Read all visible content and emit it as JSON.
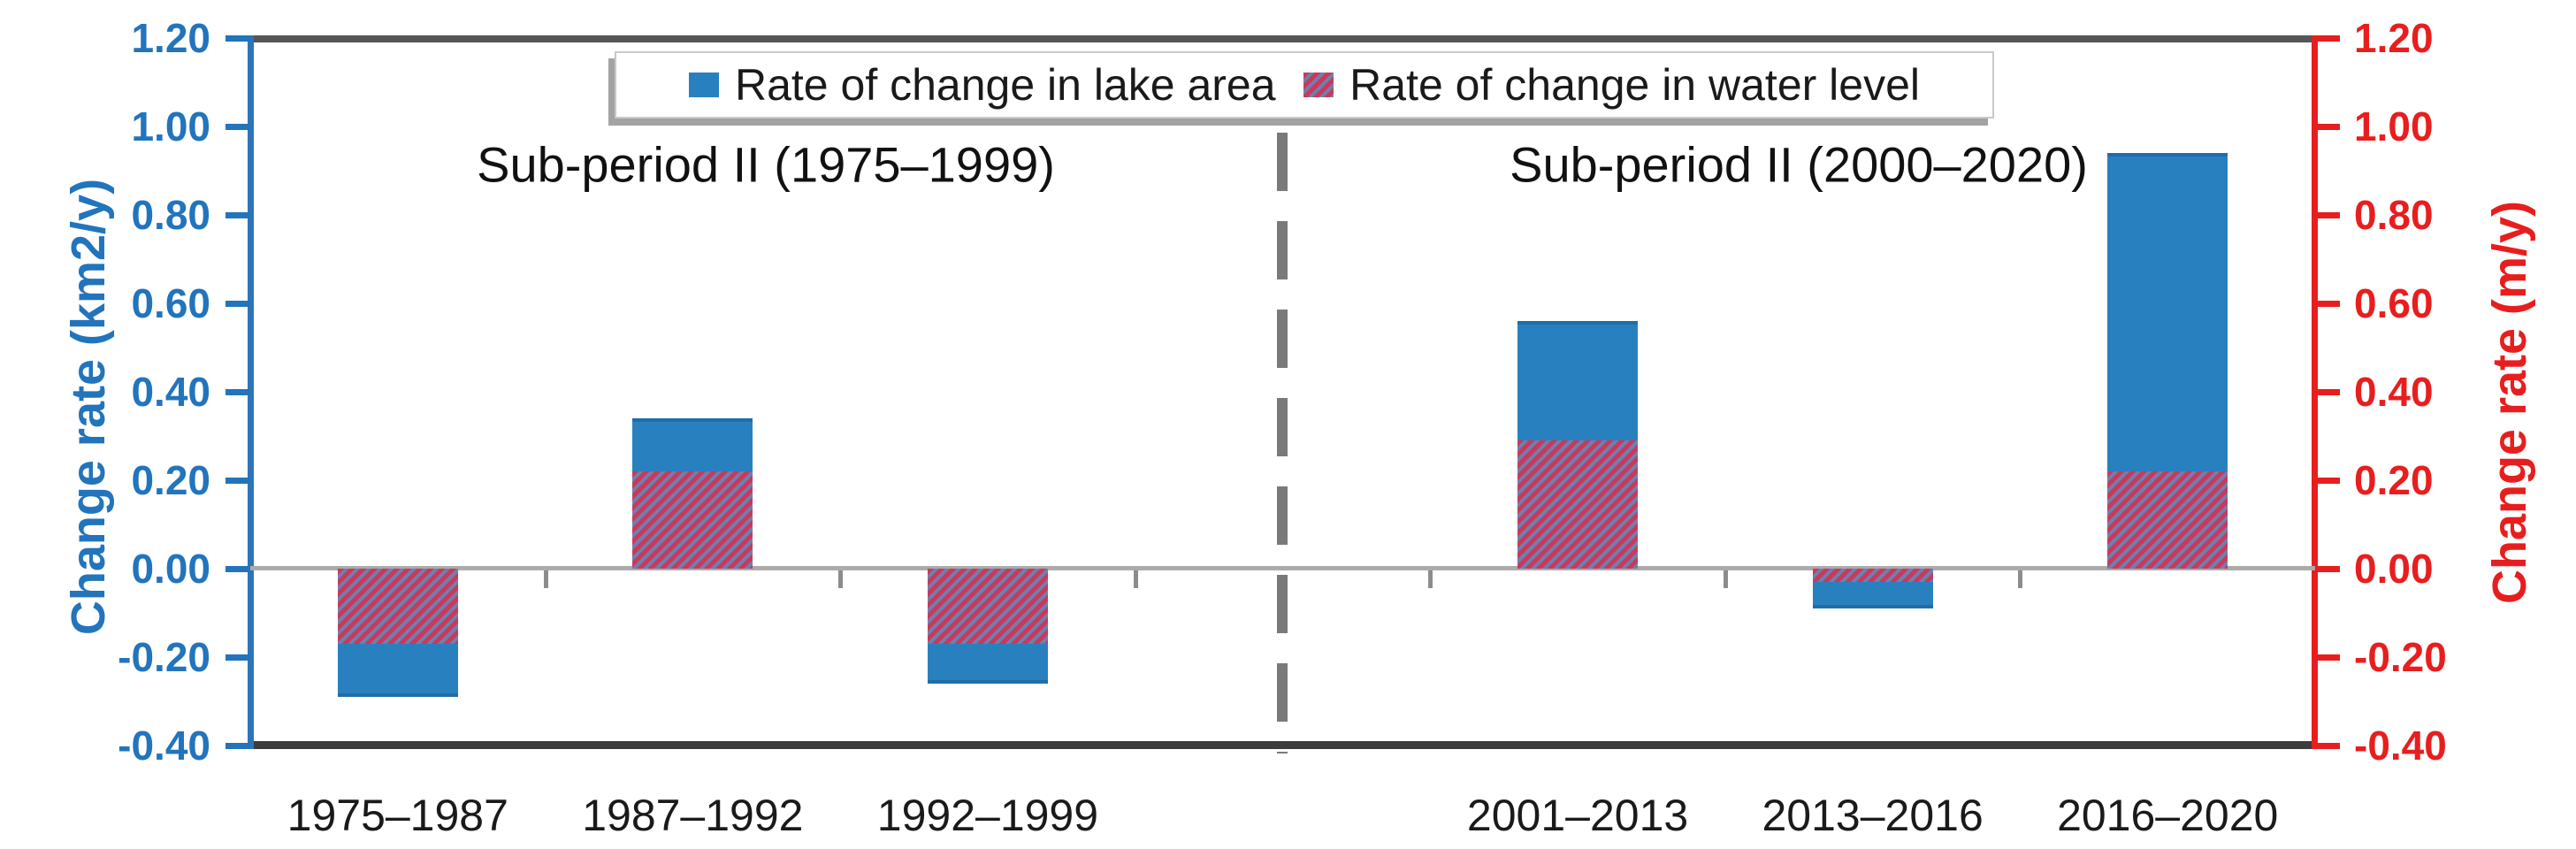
{
  "chart_data": {
    "type": "bar",
    "title": "",
    "categories": [
      "1975–1987",
      "1987–1992",
      "1992–1999",
      "2001–2013",
      "2013–2016",
      "2016–2020"
    ],
    "series": [
      {
        "name": "Rate of change in lake area",
        "values": [
          -0.29,
          0.34,
          -0.26,
          0.56,
          -0.09,
          0.94
        ],
        "color": "#2980be",
        "style": "solid"
      },
      {
        "name": "Rate of change in water level",
        "values": [
          -0.17,
          0.22,
          -0.17,
          0.29,
          -0.03,
          0.22
        ],
        "style": "hatched",
        "stripe_color": "#c9395b",
        "stripe_base_color": "#6f7fae"
      }
    ],
    "group_labels": [
      "Sub-period II (1975–1999)",
      "Sub-period II (2000–2020)"
    ],
    "left_axis": {
      "title": "Change rate (km2/y)",
      "color": "#2274bc",
      "tick_labels": [
        "1.20",
        "1.00",
        "0.80",
        "0.60",
        "0.40",
        "0.20",
        "0.00",
        "-0.20",
        "-0.40"
      ]
    },
    "right_axis": {
      "title": "Change rate (m/y)",
      "color": "#e81e1e",
      "tick_labels": [
        "1.20",
        "1.00",
        "0.80",
        "0.60",
        "0.40",
        "0.20",
        "0.00",
        "-0.20",
        "-0.40"
      ]
    },
    "ylim": [
      -0.4,
      1.2
    ],
    "grid": false,
    "legend_position": "top-center",
    "divider": {
      "type": "dashed-vertical-line",
      "between": [
        "1992–1999",
        "2001–2013"
      ]
    }
  }
}
